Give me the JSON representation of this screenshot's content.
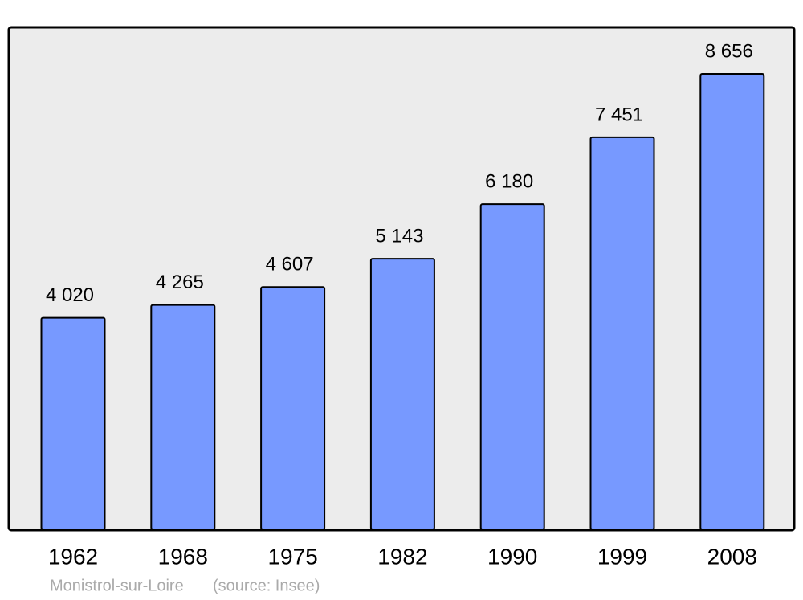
{
  "chart_data": {
    "type": "bar",
    "categories": [
      "1962",
      "1968",
      "1975",
      "1982",
      "1990",
      "1999",
      "2008"
    ],
    "values": [
      4020,
      4265,
      4607,
      5143,
      6180,
      7451,
      8656
    ],
    "value_labels": [
      "4 020",
      "4 265",
      "4 607",
      "5 143",
      "6 180",
      "7 451",
      "8 656"
    ],
    "color": "#7799ff",
    "caption": {
      "place": "Monistrol-sur-Loire",
      "source": "(source: Insee)"
    }
  }
}
